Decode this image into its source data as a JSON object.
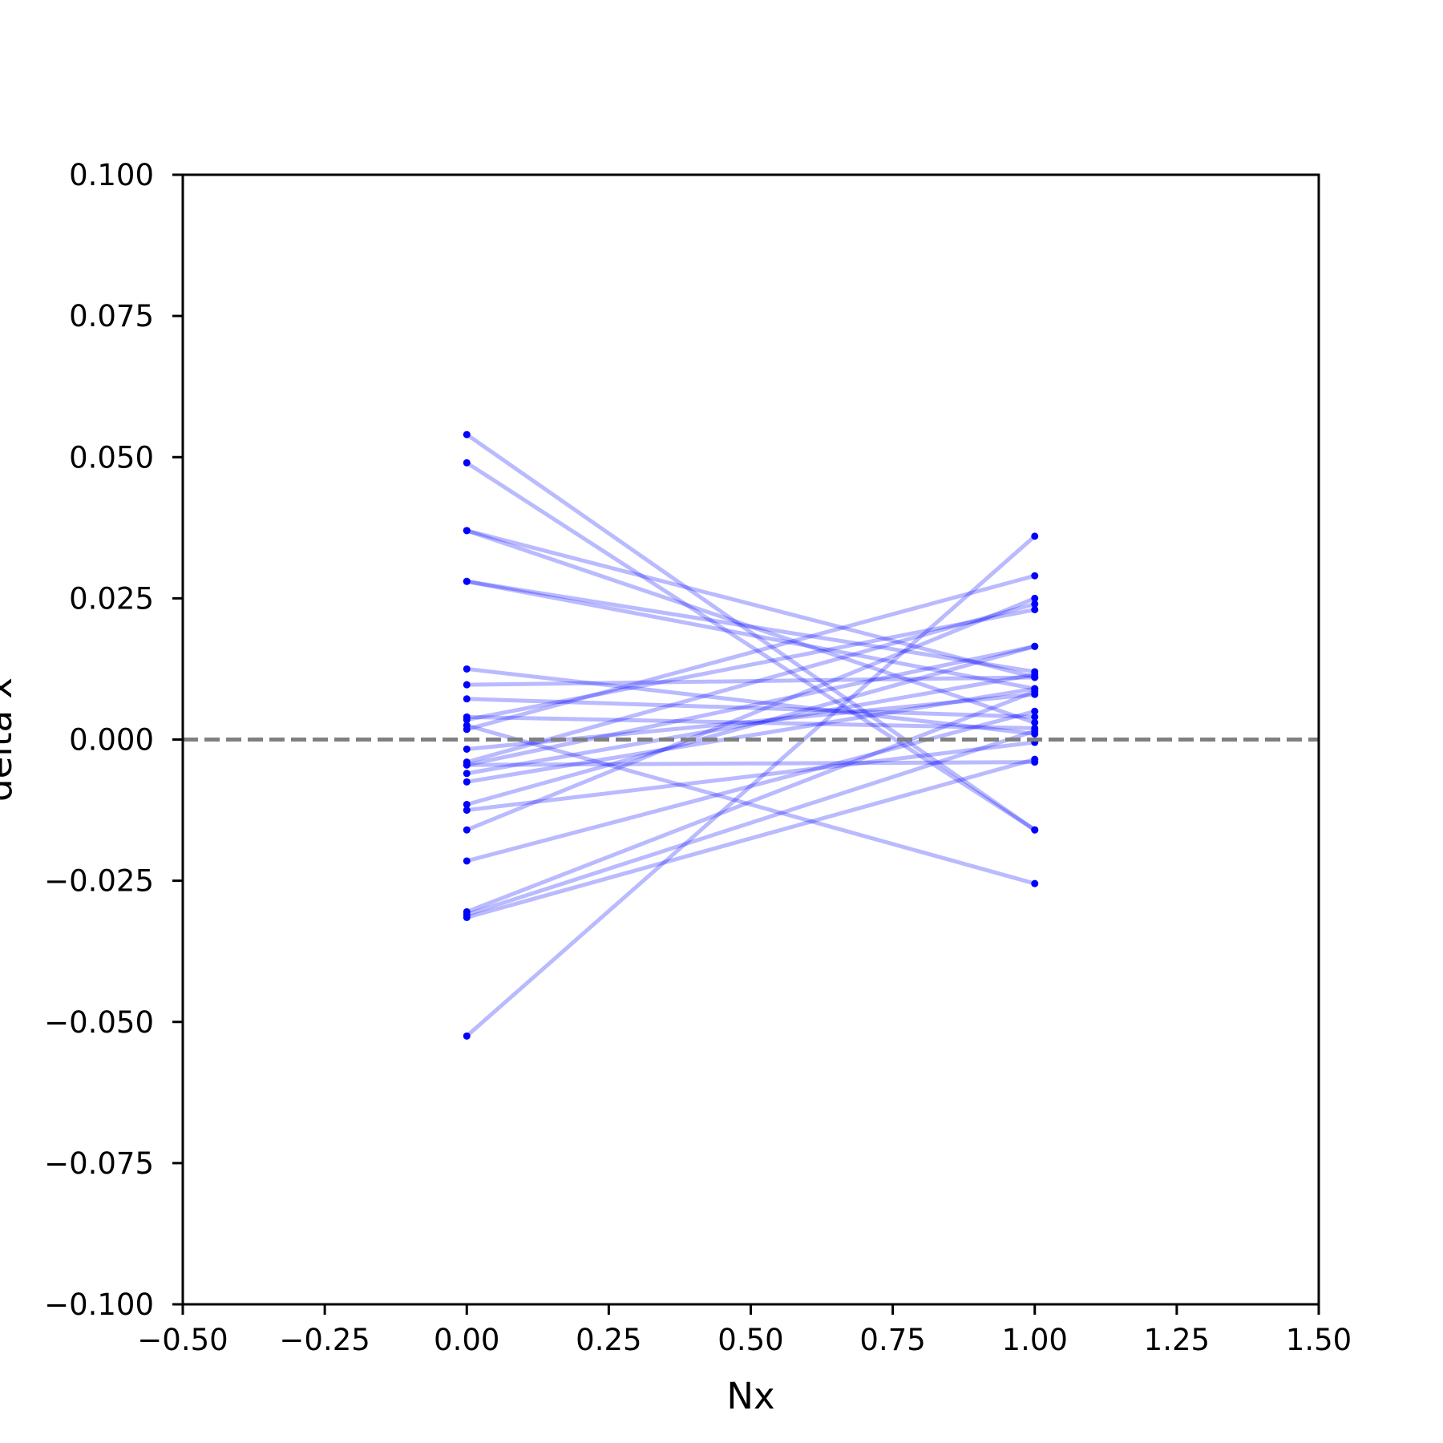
{
  "chart_data": {
    "type": "line",
    "title": "",
    "xlabel": "Nx",
    "ylabel": "delta x",
    "xlim": [
      -0.5,
      1.5
    ],
    "ylim": [
      -0.1,
      0.1
    ],
    "xticks": [
      "−0.50",
      "−0.25",
      "0.00",
      "0.25",
      "0.50",
      "0.75",
      "1.00",
      "1.25",
      "1.50"
    ],
    "yticks": [
      "−0.100",
      "−0.075",
      "−0.050",
      "−0.025",
      "0.000",
      "0.025",
      "0.050",
      "0.075",
      "0.100"
    ],
    "reference_line": {
      "y": 0.0,
      "style": "dashed",
      "color": "#808080"
    },
    "series_color": "#0000ff",
    "line_alpha": 0.27,
    "x": [
      0,
      1
    ],
    "series": [
      {
        "values": [
          0.054,
          -0.016
        ]
      },
      {
        "values": [
          0.049,
          -0.016
        ]
      },
      {
        "values": [
          0.037,
          0.011
        ]
      },
      {
        "values": [
          0.037,
          0.003
        ]
      },
      {
        "values": [
          0.028,
          0.009
        ]
      },
      {
        "values": [
          0.028,
          0.012
        ]
      },
      {
        "values": [
          0.0125,
          0.001
        ]
      },
      {
        "values": [
          0.0097,
          0.011
        ]
      },
      {
        "values": [
          0.0072,
          0.004
        ]
      },
      {
        "values": [
          0.004,
          0.002
        ]
      },
      {
        "values": [
          0.0035,
          0.023
        ]
      },
      {
        "values": [
          0.0018,
          0.029
        ]
      },
      {
        "values": [
          -0.0017,
          0.008
        ]
      },
      {
        "values": [
          -0.004,
          0.024
        ]
      },
      {
        "values": [
          -0.0045,
          0.0165
        ]
      },
      {
        "values": [
          -0.006,
          0.0115
        ]
      },
      {
        "values": [
          -0.0075,
          0.009
        ]
      },
      {
        "values": [
          -0.0115,
          0.0165
        ]
      },
      {
        "values": [
          -0.0125,
          -0.0005
        ]
      },
      {
        "values": [
          -0.016,
          0.025
        ]
      },
      {
        "values": [
          -0.0215,
          0.005
        ]
      },
      {
        "values": [
          -0.0305,
          0.0085
        ]
      },
      {
        "values": [
          -0.031,
          0.0015
        ]
      },
      {
        "values": [
          -0.0315,
          -0.0035
        ]
      },
      {
        "values": [
          -0.0525,
          0.036
        ]
      },
      {
        "values": [
          0.0025,
          -0.0255
        ]
      },
      {
        "values": [
          -0.0045,
          -0.004
        ]
      }
    ]
  }
}
